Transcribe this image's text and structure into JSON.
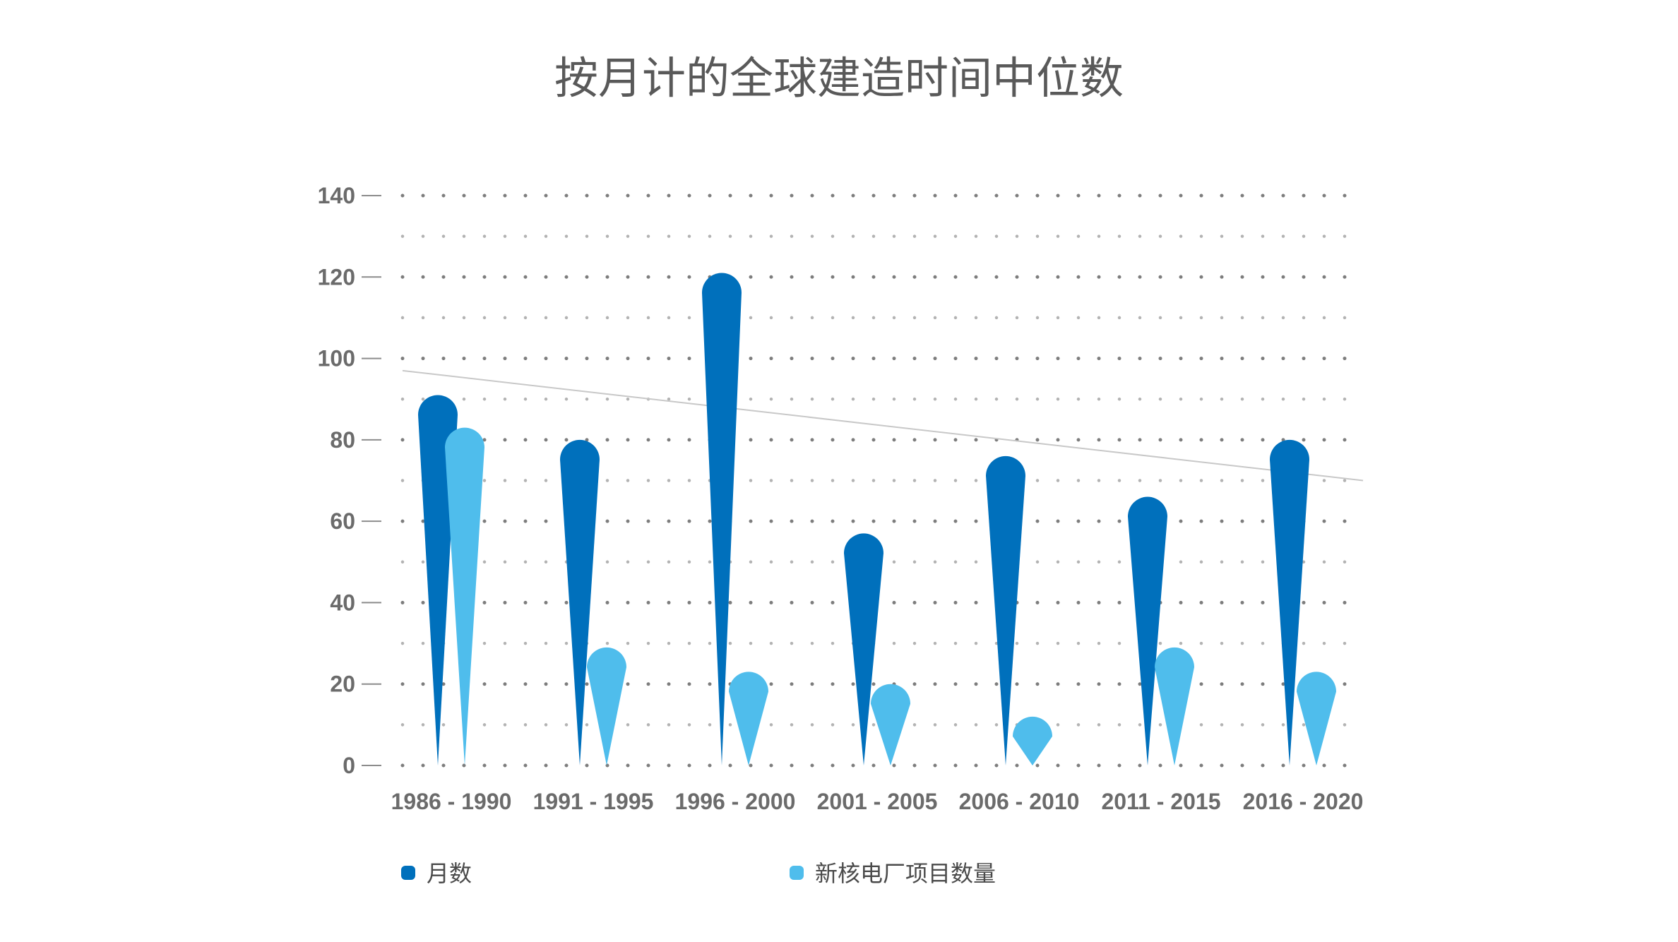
{
  "chart_data": {
    "type": "bar",
    "title": "按月计的全球建造时间中位数",
    "categories": [
      "1986 - 1990",
      "1991 - 1995",
      "1996 - 2000",
      "2001 - 2005",
      "2006 - 2010",
      "2011 - 2015",
      "2016 - 2020"
    ],
    "series": [
      {
        "name": "月数",
        "color": "#0070BC",
        "values": [
          91,
          80,
          121,
          57,
          76,
          66,
          80
        ]
      },
      {
        "name": "新核电厂项目数量",
        "color": "#4FBDEC",
        "values": [
          83,
          29,
          23,
          20,
          12,
          29,
          23
        ]
      }
    ],
    "trendline": {
      "series": "月数",
      "start": 97,
      "end": 70,
      "color": "#c8c8c8"
    },
    "ylim": [
      0,
      140
    ],
    "yticks": [
      0,
      20,
      40,
      60,
      80,
      100,
      120,
      140
    ],
    "xlabel": "",
    "ylabel": "",
    "grid": "dotted",
    "legend_position": "bottom-left"
  }
}
